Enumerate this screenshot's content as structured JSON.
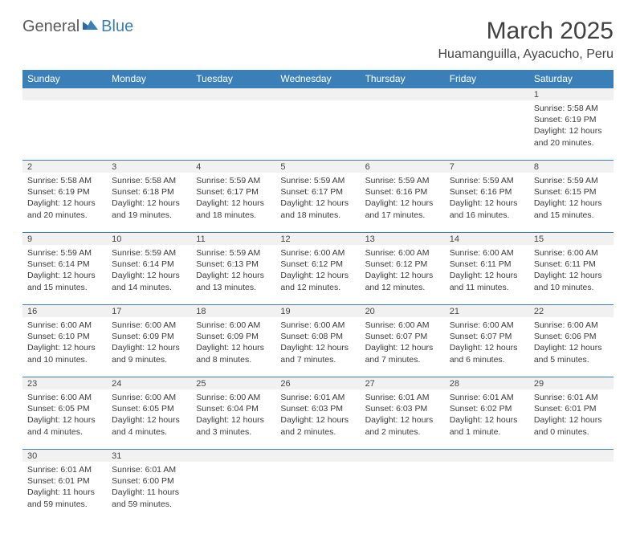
{
  "logo": {
    "part1": "General",
    "part2": "Blue"
  },
  "title": "March 2025",
  "location": "Huamanguilla, Ayacucho, Peru",
  "colors": {
    "header_bg": "#3a7fb8",
    "header_text": "#ffffff",
    "num_bg": "#f1f1f1",
    "border": "#3a7fb8",
    "text": "#3b3b3b"
  },
  "weekdays": [
    "Sunday",
    "Monday",
    "Tuesday",
    "Wednesday",
    "Thursday",
    "Friday",
    "Saturday"
  ],
  "weeks": [
    {
      "days": [
        null,
        null,
        null,
        null,
        null,
        null,
        {
          "n": "1",
          "sunrise": "Sunrise: 5:58 AM",
          "sunset": "Sunset: 6:19 PM",
          "d1": "Daylight: 12 hours",
          "d2": "and 20 minutes."
        }
      ]
    },
    {
      "days": [
        {
          "n": "2",
          "sunrise": "Sunrise: 5:58 AM",
          "sunset": "Sunset: 6:19 PM",
          "d1": "Daylight: 12 hours",
          "d2": "and 20 minutes."
        },
        {
          "n": "3",
          "sunrise": "Sunrise: 5:58 AM",
          "sunset": "Sunset: 6:18 PM",
          "d1": "Daylight: 12 hours",
          "d2": "and 19 minutes."
        },
        {
          "n": "4",
          "sunrise": "Sunrise: 5:59 AM",
          "sunset": "Sunset: 6:17 PM",
          "d1": "Daylight: 12 hours",
          "d2": "and 18 minutes."
        },
        {
          "n": "5",
          "sunrise": "Sunrise: 5:59 AM",
          "sunset": "Sunset: 6:17 PM",
          "d1": "Daylight: 12 hours",
          "d2": "and 18 minutes."
        },
        {
          "n": "6",
          "sunrise": "Sunrise: 5:59 AM",
          "sunset": "Sunset: 6:16 PM",
          "d1": "Daylight: 12 hours",
          "d2": "and 17 minutes."
        },
        {
          "n": "7",
          "sunrise": "Sunrise: 5:59 AM",
          "sunset": "Sunset: 6:16 PM",
          "d1": "Daylight: 12 hours",
          "d2": "and 16 minutes."
        },
        {
          "n": "8",
          "sunrise": "Sunrise: 5:59 AM",
          "sunset": "Sunset: 6:15 PM",
          "d1": "Daylight: 12 hours",
          "d2": "and 15 minutes."
        }
      ]
    },
    {
      "days": [
        {
          "n": "9",
          "sunrise": "Sunrise: 5:59 AM",
          "sunset": "Sunset: 6:14 PM",
          "d1": "Daylight: 12 hours",
          "d2": "and 15 minutes."
        },
        {
          "n": "10",
          "sunrise": "Sunrise: 5:59 AM",
          "sunset": "Sunset: 6:14 PM",
          "d1": "Daylight: 12 hours",
          "d2": "and 14 minutes."
        },
        {
          "n": "11",
          "sunrise": "Sunrise: 5:59 AM",
          "sunset": "Sunset: 6:13 PM",
          "d1": "Daylight: 12 hours",
          "d2": "and 13 minutes."
        },
        {
          "n": "12",
          "sunrise": "Sunrise: 6:00 AM",
          "sunset": "Sunset: 6:12 PM",
          "d1": "Daylight: 12 hours",
          "d2": "and 12 minutes."
        },
        {
          "n": "13",
          "sunrise": "Sunrise: 6:00 AM",
          "sunset": "Sunset: 6:12 PM",
          "d1": "Daylight: 12 hours",
          "d2": "and 12 minutes."
        },
        {
          "n": "14",
          "sunrise": "Sunrise: 6:00 AM",
          "sunset": "Sunset: 6:11 PM",
          "d1": "Daylight: 12 hours",
          "d2": "and 11 minutes."
        },
        {
          "n": "15",
          "sunrise": "Sunrise: 6:00 AM",
          "sunset": "Sunset: 6:11 PM",
          "d1": "Daylight: 12 hours",
          "d2": "and 10 minutes."
        }
      ]
    },
    {
      "days": [
        {
          "n": "16",
          "sunrise": "Sunrise: 6:00 AM",
          "sunset": "Sunset: 6:10 PM",
          "d1": "Daylight: 12 hours",
          "d2": "and 10 minutes."
        },
        {
          "n": "17",
          "sunrise": "Sunrise: 6:00 AM",
          "sunset": "Sunset: 6:09 PM",
          "d1": "Daylight: 12 hours",
          "d2": "and 9 minutes."
        },
        {
          "n": "18",
          "sunrise": "Sunrise: 6:00 AM",
          "sunset": "Sunset: 6:09 PM",
          "d1": "Daylight: 12 hours",
          "d2": "and 8 minutes."
        },
        {
          "n": "19",
          "sunrise": "Sunrise: 6:00 AM",
          "sunset": "Sunset: 6:08 PM",
          "d1": "Daylight: 12 hours",
          "d2": "and 7 minutes."
        },
        {
          "n": "20",
          "sunrise": "Sunrise: 6:00 AM",
          "sunset": "Sunset: 6:07 PM",
          "d1": "Daylight: 12 hours",
          "d2": "and 7 minutes."
        },
        {
          "n": "21",
          "sunrise": "Sunrise: 6:00 AM",
          "sunset": "Sunset: 6:07 PM",
          "d1": "Daylight: 12 hours",
          "d2": "and 6 minutes."
        },
        {
          "n": "22",
          "sunrise": "Sunrise: 6:00 AM",
          "sunset": "Sunset: 6:06 PM",
          "d1": "Daylight: 12 hours",
          "d2": "and 5 minutes."
        }
      ]
    },
    {
      "days": [
        {
          "n": "23",
          "sunrise": "Sunrise: 6:00 AM",
          "sunset": "Sunset: 6:05 PM",
          "d1": "Daylight: 12 hours",
          "d2": "and 4 minutes."
        },
        {
          "n": "24",
          "sunrise": "Sunrise: 6:00 AM",
          "sunset": "Sunset: 6:05 PM",
          "d1": "Daylight: 12 hours",
          "d2": "and 4 minutes."
        },
        {
          "n": "25",
          "sunrise": "Sunrise: 6:00 AM",
          "sunset": "Sunset: 6:04 PM",
          "d1": "Daylight: 12 hours",
          "d2": "and 3 minutes."
        },
        {
          "n": "26",
          "sunrise": "Sunrise: 6:01 AM",
          "sunset": "Sunset: 6:03 PM",
          "d1": "Daylight: 12 hours",
          "d2": "and 2 minutes."
        },
        {
          "n": "27",
          "sunrise": "Sunrise: 6:01 AM",
          "sunset": "Sunset: 6:03 PM",
          "d1": "Daylight: 12 hours",
          "d2": "and 2 minutes."
        },
        {
          "n": "28",
          "sunrise": "Sunrise: 6:01 AM",
          "sunset": "Sunset: 6:02 PM",
          "d1": "Daylight: 12 hours",
          "d2": "and 1 minute."
        },
        {
          "n": "29",
          "sunrise": "Sunrise: 6:01 AM",
          "sunset": "Sunset: 6:01 PM",
          "d1": "Daylight: 12 hours",
          "d2": "and 0 minutes."
        }
      ]
    },
    {
      "days": [
        {
          "n": "30",
          "sunrise": "Sunrise: 6:01 AM",
          "sunset": "Sunset: 6:01 PM",
          "d1": "Daylight: 11 hours",
          "d2": "and 59 minutes."
        },
        {
          "n": "31",
          "sunrise": "Sunrise: 6:01 AM",
          "sunset": "Sunset: 6:00 PM",
          "d1": "Daylight: 11 hours",
          "d2": "and 59 minutes."
        },
        null,
        null,
        null,
        null,
        null
      ]
    }
  ]
}
